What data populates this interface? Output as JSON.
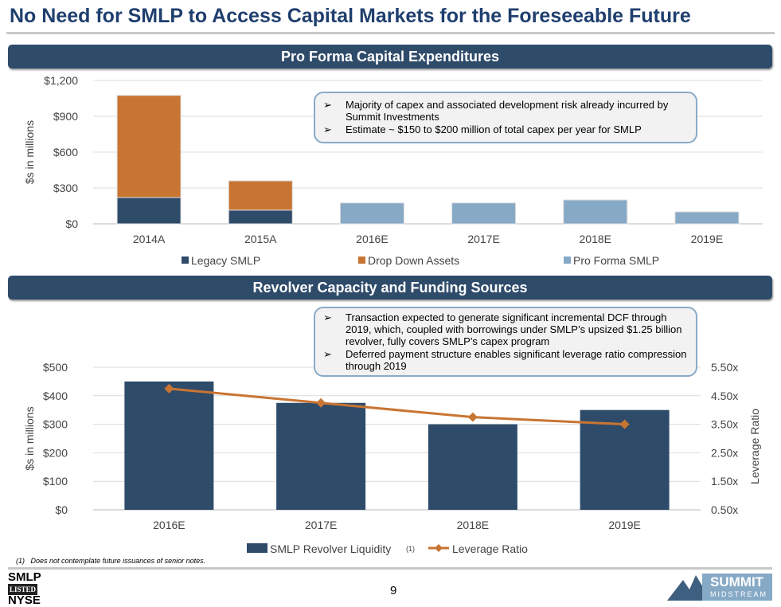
{
  "title": "No Need for SMLP to Access Capital Markets for the Foreseeable Future",
  "section1": {
    "header": "Pro Forma Capital Expenditures",
    "bullets": [
      "Majority of capex and associated development risk already incurred by Summit Investments",
      "Estimate ~ $150 to $200 million of total capex per year for SMLP"
    ]
  },
  "section2": {
    "header": "Revolver Capacity and Funding Sources",
    "bullets": [
      "Transaction expected to generate significant incremental DCF through 2019, which, coupled with borrowings under SMLP’s upsized $1.25 billion revolver, fully covers SMLP’s capex program",
      "Deferred payment structure enables significant leverage ratio compression through 2019"
    ]
  },
  "chart_data": [
    {
      "type": "bar",
      "stacked": true,
      "categories": [
        "2014A",
        "2015A",
        "2016E",
        "2017E",
        "2018E",
        "2019E"
      ],
      "series": [
        {
          "name": "Legacy SMLP",
          "color": "#2f4b6a",
          "values": [
            220,
            115,
            0,
            0,
            0,
            0
          ]
        },
        {
          "name": "Drop Down Assets",
          "color": "#c87533",
          "values": [
            855,
            245,
            0,
            0,
            0,
            0
          ]
        },
        {
          "name": "Pro Forma SMLP",
          "color": "#86a9c6",
          "values": [
            0,
            0,
            175,
            175,
            200,
            100
          ]
        }
      ],
      "ylabel": "$s in millions",
      "ylim": [
        0,
        1200
      ],
      "yticks": [
        "$0",
        "$300",
        "$600",
        "$900",
        "$1,200"
      ],
      "grid": true,
      "legend": "bottom"
    },
    {
      "type": "bar+line",
      "categories": [
        "2016E",
        "2017E",
        "2018E",
        "2019E"
      ],
      "series": [
        {
          "name": "SMLP Revolver Liquidity",
          "footnote_marker": "(1)",
          "color": "#2f4b6a",
          "axis": "left",
          "values": [
            450,
            375,
            300,
            350
          ]
        },
        {
          "name": "Leverage Ratio",
          "color": "#c87533",
          "axis": "right",
          "values": [
            4.75,
            4.25,
            3.75,
            3.5
          ]
        }
      ],
      "ylabel": "$s in millions",
      "y2label": "Leverage Ratio",
      "ylim": [
        0,
        500
      ],
      "y2lim": [
        0.5,
        5.5
      ],
      "yticks": [
        "$0",
        "$100",
        "$200",
        "$300",
        "$400",
        "$500"
      ],
      "y2ticks": [
        "0.50x",
        "1.50x",
        "2.50x",
        "3.50x",
        "4.50x",
        "5.50x"
      ],
      "grid": true,
      "legend": "bottom"
    }
  ],
  "footnote": {
    "marker": "(1)",
    "text": "Does not contemplate future issuances of senior notes."
  },
  "page_number": "9",
  "logos": {
    "exchange": [
      "SMLP",
      "LISTED",
      "NYSE"
    ],
    "company": [
      "SUMMIT",
      "MIDSTREAM"
    ]
  }
}
